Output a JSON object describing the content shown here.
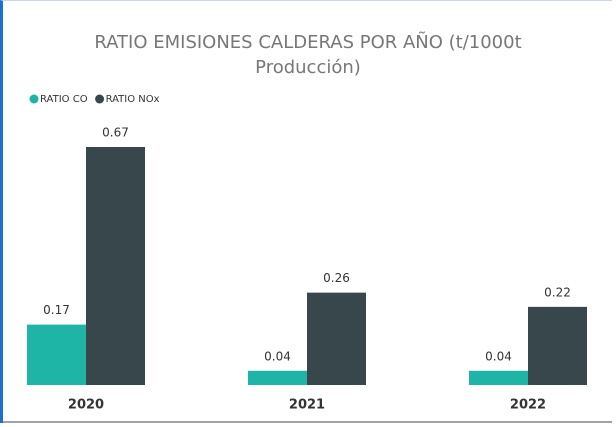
{
  "chart_data": {
    "type": "bar",
    "title": "RATIO EMISIONES CALDERAS POR AÑO (t/1000t Producción)",
    "categories": [
      "2020",
      "2021",
      "2022"
    ],
    "series": [
      {
        "name": "RATIO CO",
        "color": "#1fb5a6",
        "values": [
          0.17,
          0.04,
          0.04
        ]
      },
      {
        "name": "RATIO NOx",
        "color": "#37474b",
        "values": [
          0.67,
          0.26,
          0.22
        ]
      }
    ],
    "legend": "top-left"
  }
}
